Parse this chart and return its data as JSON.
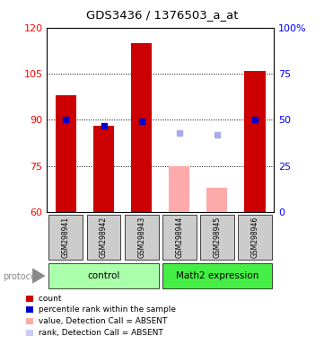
{
  "title": "GDS3436 / 1376503_a_at",
  "samples": [
    "GSM298941",
    "GSM298942",
    "GSM298943",
    "GSM298944",
    "GSM298945",
    "GSM298946"
  ],
  "bar_values": [
    98,
    88,
    115,
    75,
    68,
    106
  ],
  "bar_colors": [
    "#cc0000",
    "#cc0000",
    "#cc0000",
    "#ffaaaa",
    "#ffaaaa",
    "#cc0000"
  ],
  "percentile_values": [
    50,
    47,
    49,
    43,
    42,
    50
  ],
  "percentile_colors": [
    "#0000cc",
    "#0000cc",
    "#0000cc",
    "#aaaaee",
    "#aaaaee",
    "#0000cc"
  ],
  "absent_mask": [
    false,
    false,
    false,
    true,
    true,
    false
  ],
  "ylim_left": [
    60,
    120
  ],
  "ylim_right": [
    0,
    100
  ],
  "yticks_left": [
    60,
    75,
    90,
    105,
    120
  ],
  "ytick_labels_left": [
    "60",
    "75",
    "90",
    "105",
    "120"
  ],
  "yticks_right": [
    0,
    25,
    50,
    75,
    100
  ],
  "ytick_labels_right": [
    "0",
    "25",
    "50",
    "75",
    "100%"
  ],
  "group_defs": [
    {
      "start": 0,
      "end": 2,
      "label": "control",
      "color": "#aaffaa"
    },
    {
      "start": 3,
      "end": 5,
      "label": "Math2 expression",
      "color": "#44ee44"
    }
  ],
  "legend_items": [
    {
      "color": "#cc0000",
      "label": " count"
    },
    {
      "color": "#0000cc",
      "label": " percentile rank within the sample"
    },
    {
      "color": "#ffaaaa",
      "label": " value, Detection Call = ABSENT"
    },
    {
      "color": "#ccccff",
      "label": " rank, Detection Call = ABSENT"
    }
  ],
  "protocol_label": "protocol"
}
